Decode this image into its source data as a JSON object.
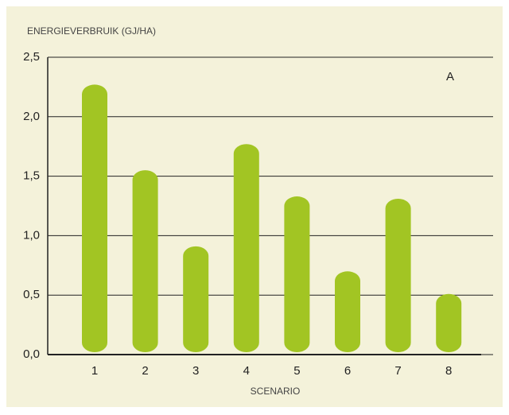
{
  "chart_data": {
    "type": "bar",
    "title": "ENERGIEVERBRUIK (GJ/HA)",
    "x_label": "SCENARIO",
    "annotation": "A",
    "categories": [
      "1",
      "2",
      "3",
      "4",
      "5",
      "6",
      "7",
      "8"
    ],
    "values": [
      2.27,
      1.55,
      0.91,
      1.77,
      1.33,
      0.7,
      1.31,
      0.51
    ],
    "color": "#a2c523",
    "ylim": [
      0,
      2.5
    ],
    "yticks": [
      {
        "value": 0,
        "label": "0,0"
      },
      {
        "value": 0.5,
        "label": "0,5"
      },
      {
        "value": 1,
        "label": "1,0"
      },
      {
        "value": 1.5,
        "label": "1,5"
      },
      {
        "value": 2,
        "label": "2,0"
      },
      {
        "value": 2.5,
        "label": "2,5"
      }
    ],
    "grid": true
  }
}
